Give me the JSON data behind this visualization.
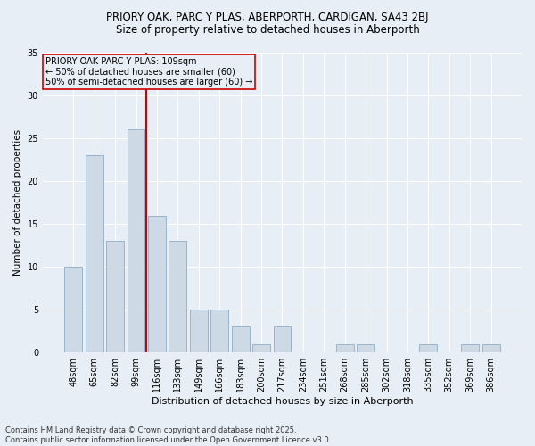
{
  "title1": "PRIORY OAK, PARC Y PLAS, ABERPORTH, CARDIGAN, SA43 2BJ",
  "title2": "Size of property relative to detached houses in Aberporth",
  "xlabel": "Distribution of detached houses by size in Aberporth",
  "ylabel": "Number of detached properties",
  "categories": [
    "48sqm",
    "65sqm",
    "82sqm",
    "99sqm",
    "116sqm",
    "133sqm",
    "149sqm",
    "166sqm",
    "183sqm",
    "200sqm",
    "217sqm",
    "234sqm",
    "251sqm",
    "268sqm",
    "285sqm",
    "302sqm",
    "318sqm",
    "335sqm",
    "352sqm",
    "369sqm",
    "386sqm"
  ],
  "values": [
    10,
    23,
    13,
    26,
    16,
    13,
    5,
    5,
    3,
    1,
    3,
    0,
    0,
    1,
    1,
    0,
    0,
    1,
    0,
    1,
    1
  ],
  "bar_color": "#cdd9e5",
  "bar_edge_color": "#9ab4cc",
  "vline_x": 3.5,
  "vline_color": "#cc0000",
  "ylim": [
    0,
    35
  ],
  "yticks": [
    0,
    5,
    10,
    15,
    20,
    25,
    30,
    35
  ],
  "annotation_title": "PRIORY OAK PARC Y PLAS: 109sqm",
  "annotation_line1": "← 50% of detached houses are smaller (60)",
  "annotation_line2": "50% of semi-detached houses are larger (60) →",
  "footnote": "Contains HM Land Registry data © Crown copyright and database right 2025.\nContains public sector information licensed under the Open Government Licence v3.0.",
  "bg_color": "#e8eef5",
  "grid_color": "#ffffff",
  "title1_fontsize": 8.5,
  "title2_fontsize": 8.5,
  "xlabel_fontsize": 8,
  "ylabel_fontsize": 7.5,
  "tick_fontsize": 7,
  "annot_fontsize": 7,
  "footnote_fontsize": 6
}
